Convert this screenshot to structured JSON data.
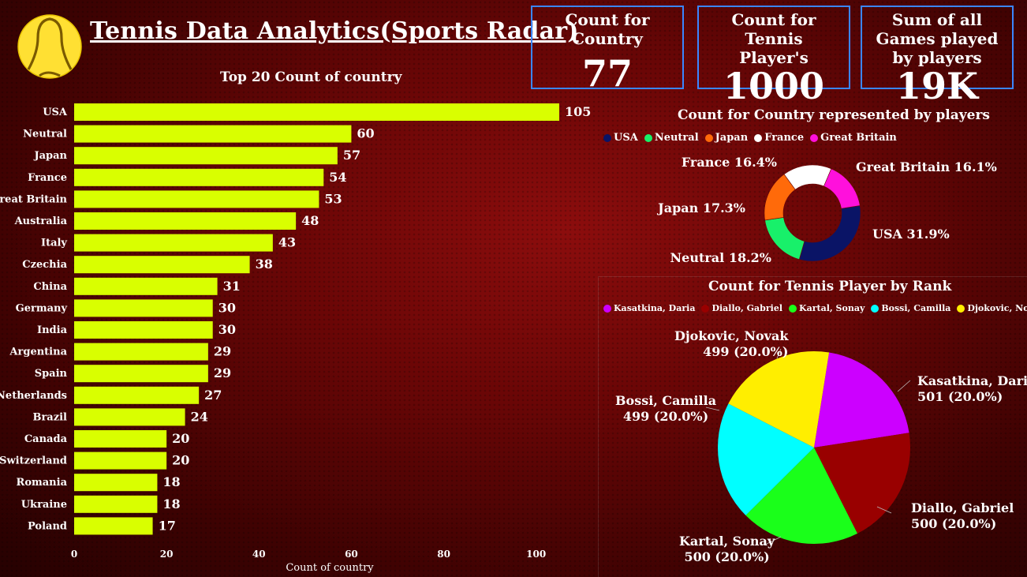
{
  "header": {
    "title": "Tennis Data Analytics(Sports Radar)"
  },
  "kpis": [
    {
      "label": "Count for Country",
      "value": "77"
    },
    {
      "label": "Count for Tennis Player's",
      "value": "1000"
    },
    {
      "label": "Sum of all Games played by players",
      "value": "19K"
    }
  ],
  "chart_data": [
    {
      "type": "bar",
      "orientation": "horizontal",
      "title": "Top 20 Count of country",
      "xlabel": "Count of country",
      "ylabel": "",
      "categories": [
        "USA",
        "Neutral",
        "Japan",
        "France",
        "Great Britain",
        "Australia",
        "Italy",
        "Czechia",
        "China",
        "Germany",
        "India",
        "Argentina",
        "Spain",
        "Netherlands",
        "Brazil",
        "Canada",
        "Switzerland",
        "Romania",
        "Ukraine",
        "Poland"
      ],
      "values": [
        105,
        60,
        57,
        54,
        53,
        48,
        43,
        38,
        31,
        30,
        30,
        29,
        29,
        27,
        24,
        20,
        20,
        18,
        18,
        17
      ],
      "xticks": [
        0,
        20,
        40,
        60,
        80,
        100
      ],
      "xlim": [
        0,
        110
      ],
      "color": "#d9ff00",
      "grid": false
    },
    {
      "type": "pie",
      "donut": true,
      "title": "Count for Country represented by players",
      "legend_placement": "top",
      "slices": [
        {
          "name": "USA",
          "percent": 31.9,
          "label": "USA 31.9%",
          "color": "#0a1466"
        },
        {
          "name": "Neutral",
          "percent": 18.2,
          "label": "Neutral 18.2%",
          "color": "#18f06a"
        },
        {
          "name": "Japan",
          "percent": 17.3,
          "label": "Japan 17.3%",
          "color": "#ff6a0a"
        },
        {
          "name": "France",
          "percent": 16.4,
          "label": "France 16.4%",
          "color": "#ffffff"
        },
        {
          "name": "Great Britain",
          "percent": 16.1,
          "label": "Great Britain 16.1%",
          "color": "#ff10dc"
        }
      ]
    },
    {
      "type": "pie",
      "donut": false,
      "title": "Count for Tennis Player by Rank",
      "legend_placement": "top",
      "slices": [
        {
          "name": "Kasatkina, Daria",
          "value": 501,
          "line1": "Kasatkina, Daria",
          "line2": "501 (20.0%)",
          "color": "#cc00ff"
        },
        {
          "name": "Diallo, Gabriel",
          "value": 500,
          "line1": "Diallo, Gabriel",
          "line2": "500 (20.0%)",
          "color": "#990000"
        },
        {
          "name": "Kartal, Sonay",
          "value": 500,
          "line1": "Kartal, Sonay",
          "line2": "500 (20.0%)",
          "color": "#1aff1a"
        },
        {
          "name": "Bossi, Camilla",
          "value": 499,
          "line1": "Bossi, Camilla",
          "line2": "499 (20.0%)",
          "color": "#00ffff"
        },
        {
          "name": "Djokovic, Novak",
          "value": 499,
          "line1": "Djokovic, Novak",
          "line2": "499 (20.0%)",
          "color": "#ffee00"
        }
      ]
    }
  ]
}
